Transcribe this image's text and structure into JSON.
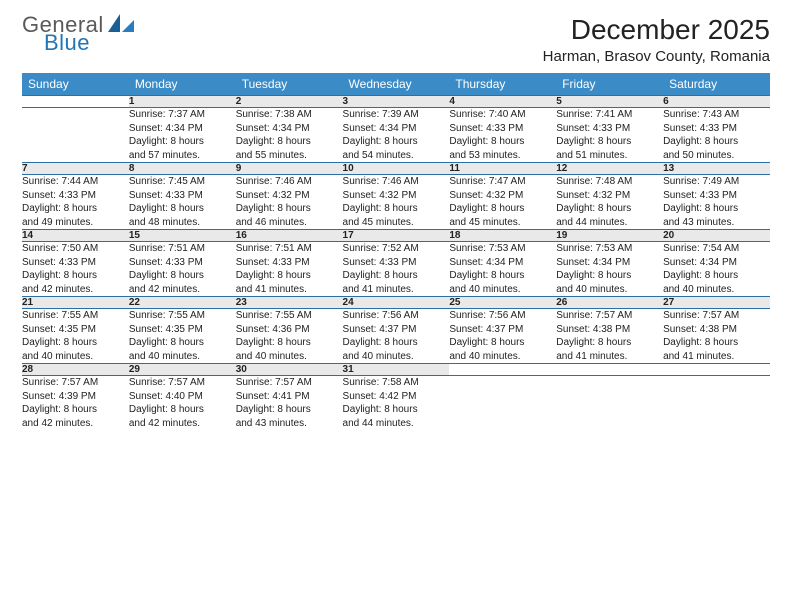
{
  "brand": {
    "part1": "General",
    "part2": "Blue",
    "text_color": "#5a5a5a",
    "accent_color": "#2176b8"
  },
  "title": "December 2025",
  "location": "Harman, Brasov County, Romania",
  "header_bg": "#3b8bc7",
  "header_fg": "#ffffff",
  "daynum_bg": "#e9e9e9",
  "rule_color": "#2d6fa3",
  "days_of_week": [
    "Sunday",
    "Monday",
    "Tuesday",
    "Wednesday",
    "Thursday",
    "Friday",
    "Saturday"
  ],
  "weeks": [
    {
      "nums": [
        "",
        "1",
        "2",
        "3",
        "4",
        "5",
        "6"
      ],
      "cells": [
        null,
        {
          "sunrise": "Sunrise: 7:37 AM",
          "sunset": "Sunset: 4:34 PM",
          "dl1": "Daylight: 8 hours",
          "dl2": "and 57 minutes."
        },
        {
          "sunrise": "Sunrise: 7:38 AM",
          "sunset": "Sunset: 4:34 PM",
          "dl1": "Daylight: 8 hours",
          "dl2": "and 55 minutes."
        },
        {
          "sunrise": "Sunrise: 7:39 AM",
          "sunset": "Sunset: 4:34 PM",
          "dl1": "Daylight: 8 hours",
          "dl2": "and 54 minutes."
        },
        {
          "sunrise": "Sunrise: 7:40 AM",
          "sunset": "Sunset: 4:33 PM",
          "dl1": "Daylight: 8 hours",
          "dl2": "and 53 minutes."
        },
        {
          "sunrise": "Sunrise: 7:41 AM",
          "sunset": "Sunset: 4:33 PM",
          "dl1": "Daylight: 8 hours",
          "dl2": "and 51 minutes."
        },
        {
          "sunrise": "Sunrise: 7:43 AM",
          "sunset": "Sunset: 4:33 PM",
          "dl1": "Daylight: 8 hours",
          "dl2": "and 50 minutes."
        }
      ]
    },
    {
      "nums": [
        "7",
        "8",
        "9",
        "10",
        "11",
        "12",
        "13"
      ],
      "cells": [
        {
          "sunrise": "Sunrise: 7:44 AM",
          "sunset": "Sunset: 4:33 PM",
          "dl1": "Daylight: 8 hours",
          "dl2": "and 49 minutes."
        },
        {
          "sunrise": "Sunrise: 7:45 AM",
          "sunset": "Sunset: 4:33 PM",
          "dl1": "Daylight: 8 hours",
          "dl2": "and 48 minutes."
        },
        {
          "sunrise": "Sunrise: 7:46 AM",
          "sunset": "Sunset: 4:32 PM",
          "dl1": "Daylight: 8 hours",
          "dl2": "and 46 minutes."
        },
        {
          "sunrise": "Sunrise: 7:46 AM",
          "sunset": "Sunset: 4:32 PM",
          "dl1": "Daylight: 8 hours",
          "dl2": "and 45 minutes."
        },
        {
          "sunrise": "Sunrise: 7:47 AM",
          "sunset": "Sunset: 4:32 PM",
          "dl1": "Daylight: 8 hours",
          "dl2": "and 45 minutes."
        },
        {
          "sunrise": "Sunrise: 7:48 AM",
          "sunset": "Sunset: 4:32 PM",
          "dl1": "Daylight: 8 hours",
          "dl2": "and 44 minutes."
        },
        {
          "sunrise": "Sunrise: 7:49 AM",
          "sunset": "Sunset: 4:33 PM",
          "dl1": "Daylight: 8 hours",
          "dl2": "and 43 minutes."
        }
      ]
    },
    {
      "nums": [
        "14",
        "15",
        "16",
        "17",
        "18",
        "19",
        "20"
      ],
      "cells": [
        {
          "sunrise": "Sunrise: 7:50 AM",
          "sunset": "Sunset: 4:33 PM",
          "dl1": "Daylight: 8 hours",
          "dl2": "and 42 minutes."
        },
        {
          "sunrise": "Sunrise: 7:51 AM",
          "sunset": "Sunset: 4:33 PM",
          "dl1": "Daylight: 8 hours",
          "dl2": "and 42 minutes."
        },
        {
          "sunrise": "Sunrise: 7:51 AM",
          "sunset": "Sunset: 4:33 PM",
          "dl1": "Daylight: 8 hours",
          "dl2": "and 41 minutes."
        },
        {
          "sunrise": "Sunrise: 7:52 AM",
          "sunset": "Sunset: 4:33 PM",
          "dl1": "Daylight: 8 hours",
          "dl2": "and 41 minutes."
        },
        {
          "sunrise": "Sunrise: 7:53 AM",
          "sunset": "Sunset: 4:34 PM",
          "dl1": "Daylight: 8 hours",
          "dl2": "and 40 minutes."
        },
        {
          "sunrise": "Sunrise: 7:53 AM",
          "sunset": "Sunset: 4:34 PM",
          "dl1": "Daylight: 8 hours",
          "dl2": "and 40 minutes."
        },
        {
          "sunrise": "Sunrise: 7:54 AM",
          "sunset": "Sunset: 4:34 PM",
          "dl1": "Daylight: 8 hours",
          "dl2": "and 40 minutes."
        }
      ]
    },
    {
      "nums": [
        "21",
        "22",
        "23",
        "24",
        "25",
        "26",
        "27"
      ],
      "cells": [
        {
          "sunrise": "Sunrise: 7:55 AM",
          "sunset": "Sunset: 4:35 PM",
          "dl1": "Daylight: 8 hours",
          "dl2": "and 40 minutes."
        },
        {
          "sunrise": "Sunrise: 7:55 AM",
          "sunset": "Sunset: 4:35 PM",
          "dl1": "Daylight: 8 hours",
          "dl2": "and 40 minutes."
        },
        {
          "sunrise": "Sunrise: 7:55 AM",
          "sunset": "Sunset: 4:36 PM",
          "dl1": "Daylight: 8 hours",
          "dl2": "and 40 minutes."
        },
        {
          "sunrise": "Sunrise: 7:56 AM",
          "sunset": "Sunset: 4:37 PM",
          "dl1": "Daylight: 8 hours",
          "dl2": "and 40 minutes."
        },
        {
          "sunrise": "Sunrise: 7:56 AM",
          "sunset": "Sunset: 4:37 PM",
          "dl1": "Daylight: 8 hours",
          "dl2": "and 40 minutes."
        },
        {
          "sunrise": "Sunrise: 7:57 AM",
          "sunset": "Sunset: 4:38 PM",
          "dl1": "Daylight: 8 hours",
          "dl2": "and 41 minutes."
        },
        {
          "sunrise": "Sunrise: 7:57 AM",
          "sunset": "Sunset: 4:38 PM",
          "dl1": "Daylight: 8 hours",
          "dl2": "and 41 minutes."
        }
      ]
    },
    {
      "nums": [
        "28",
        "29",
        "30",
        "31",
        "",
        "",
        ""
      ],
      "cells": [
        {
          "sunrise": "Sunrise: 7:57 AM",
          "sunset": "Sunset: 4:39 PM",
          "dl1": "Daylight: 8 hours",
          "dl2": "and 42 minutes."
        },
        {
          "sunrise": "Sunrise: 7:57 AM",
          "sunset": "Sunset: 4:40 PM",
          "dl1": "Daylight: 8 hours",
          "dl2": "and 42 minutes."
        },
        {
          "sunrise": "Sunrise: 7:57 AM",
          "sunset": "Sunset: 4:41 PM",
          "dl1": "Daylight: 8 hours",
          "dl2": "and 43 minutes."
        },
        {
          "sunrise": "Sunrise: 7:58 AM",
          "sunset": "Sunset: 4:42 PM",
          "dl1": "Daylight: 8 hours",
          "dl2": "and 44 minutes."
        },
        null,
        null,
        null
      ]
    }
  ]
}
